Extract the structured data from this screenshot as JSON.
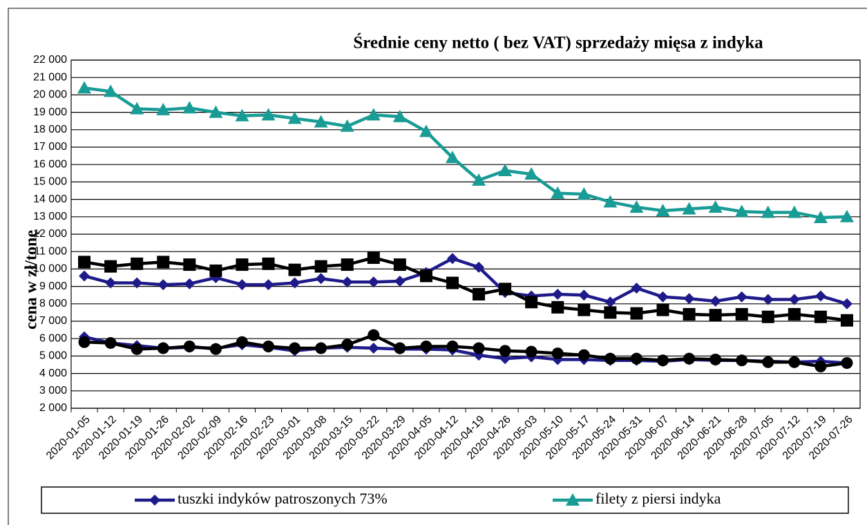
{
  "chart_data": {
    "type": "line",
    "title": "Średnie ceny netto ( bez VAT) sprzedaży mięsa z indyka",
    "y_label": "cena w zł/tonę",
    "categories": [
      "2020-01-05",
      "2020-01-12",
      "2020-01-19",
      "2020-01-26",
      "2020-02-02",
      "2020-02-09",
      "2020-02-16",
      "2020-02-23",
      "2020-03-01",
      "2020-03-08",
      "2020-03-15",
      "2020-03-22",
      "2020-03-29",
      "2020-04-05",
      "2020-04-12",
      "2020-04-19",
      "2020-04-26",
      "2020-05-03",
      "2020-05-10",
      "2020-05-17",
      "2020-05-24",
      "2020-05-31",
      "2020-06-07",
      "2020-06-14",
      "2020-06-21",
      "2020-06-28",
      "2020-07-05",
      "2020-07-12",
      "2020-07-19",
      "2020-07-26"
    ],
    "series": [
      {
        "name": "tuszki indyków patroszonych 73%",
        "color": "#1f1a8a",
        "marker": "diamond",
        "values": [
          9600,
          9200,
          9200,
          9100,
          9150,
          9500,
          9100,
          9100,
          9200,
          9450,
          9250,
          9250,
          9300,
          9800,
          10600,
          10100,
          8650,
          8450,
          8550,
          8500,
          8100,
          8900,
          8400,
          8300,
          8150,
          8400,
          8250,
          8250,
          8450,
          8000
        ]
      },
      {
        "name": "filety z piersi indyka",
        "color": "#199c95",
        "marker": "triangle",
        "values": [
          20400,
          20200,
          19200,
          19150,
          19250,
          19000,
          18800,
          18850,
          18650,
          18450,
          18200,
          18850,
          18750,
          17900,
          16400,
          15100,
          15650,
          15450,
          14350,
          14300,
          13850,
          13550,
          13350,
          13450,
          13550,
          13300,
          13250,
          13250,
          12950,
          13000
        ]
      },
      {
        "color": "#1f1a8a",
        "marker": "diamond",
        "values": [
          6100,
          5750,
          5600,
          5450,
          5500,
          5450,
          5650,
          5500,
          5300,
          5450,
          5500,
          5450,
          5400,
          5400,
          5350,
          5050,
          4850,
          4950,
          4800,
          4800,
          4750,
          4750,
          4700,
          4800,
          4750,
          4750,
          4700,
          4650,
          4700,
          4600
        ]
      },
      {
        "color": "#000000",
        "marker": "square",
        "values": [
          10400,
          10150,
          10300,
          10400,
          10250,
          9900,
          10250,
          10300,
          9950,
          10150,
          10250,
          10650,
          10250,
          9600,
          9200,
          8550,
          8850,
          8100,
          7800,
          7650,
          7500,
          7450,
          7650,
          7400,
          7350,
          7400,
          7250,
          7400,
          7250,
          7050
        ]
      },
      {
        "color": "#000000",
        "marker": "circle",
        "values": [
          5800,
          5750,
          5400,
          5450,
          5550,
          5400,
          5800,
          5550,
          5450,
          5450,
          5650,
          6200,
          5450,
          5550,
          5550,
          5450,
          5300,
          5250,
          5150,
          5050,
          4850,
          4850,
          4750,
          4850,
          4800,
          4750,
          4650,
          4650,
          4400,
          4600
        ]
      }
    ],
    "ylim": [
      2000,
      22000
    ],
    "yticks": [
      {
        "value": 2000,
        "label": "2 000"
      },
      {
        "value": 3000,
        "label": "3 000"
      },
      {
        "value": 4000,
        "label": "4 000"
      },
      {
        "value": 5000,
        "label": "5 000"
      },
      {
        "value": 6000,
        "label": "6 000"
      },
      {
        "value": 7000,
        "label": "7 000"
      },
      {
        "value": 8000,
        "label": "8 000"
      },
      {
        "value": 9000,
        "label": "9 000"
      },
      {
        "value": 10000,
        "label": "10 000"
      },
      {
        "value": 11000,
        "label": "11 000"
      },
      {
        "value": 12000,
        "label": "12 000"
      },
      {
        "value": 13000,
        "label": "13 000"
      },
      {
        "value": 14000,
        "label": "14 000"
      },
      {
        "value": 15000,
        "label": "15 000"
      },
      {
        "value": 16000,
        "label": "16 000"
      },
      {
        "value": 17000,
        "label": "17 000"
      },
      {
        "value": 18000,
        "label": "18 000"
      },
      {
        "value": 19000,
        "label": "19 000"
      },
      {
        "value": 20000,
        "label": "20 000"
      },
      {
        "value": 21000,
        "label": "21 000"
      },
      {
        "value": 22000,
        "label": "22 000"
      }
    ],
    "grid": true,
    "legend": "bottom"
  }
}
